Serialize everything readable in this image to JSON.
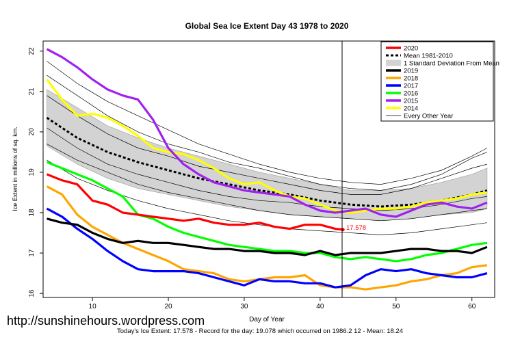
{
  "chart_data": {
    "type": "line",
    "title": "Global Sea Ice Extent Day 43 1978 to 2020",
    "xlabel": "Day of Year",
    "ylabel": "Ice Extent in millions of sq. km.",
    "xlim": [
      3.5,
      63
    ],
    "ylim": [
      15.9,
      22.25
    ],
    "x_ticks": [
      10,
      20,
      30,
      40,
      50,
      60
    ],
    "y_ticks": [
      16,
      17,
      18,
      19,
      20,
      21,
      22
    ],
    "current_day": 43,
    "current_value_label": "17.578",
    "colors": {
      "2020": "#ff0000",
      "mean": "#000000",
      "sd_band": "#d3d3d3",
      "2019": "#000000",
      "2018": "#ffa500",
      "2017": "#0000ff",
      "2016": "#00ff00",
      "2015": "#a020f0",
      "2014": "#ffff00",
      "other": "#000000"
    },
    "legend": [
      {
        "label": "2020",
        "color": "#ff0000",
        "style": "thick"
      },
      {
        "label": "Mean 1981-2010",
        "color": "#000000",
        "style": "dotted"
      },
      {
        "label": "1 Standard Deviation From Mean",
        "color": "#d3d3d3",
        "style": "band"
      },
      {
        "label": "2019",
        "color": "#000000",
        "style": "thick"
      },
      {
        "label": "2018",
        "color": "#ffa500",
        "style": "thick"
      },
      {
        "label": "2017",
        "color": "#0000ff",
        "style": "thick"
      },
      {
        "label": "2016",
        "color": "#00ff00",
        "style": "thick"
      },
      {
        "label": "2015",
        "color": "#a020f0",
        "style": "thick"
      },
      {
        "label": "2014",
        "color": "#ffff00",
        "style": "thick"
      },
      {
        "label": "Every Other Year",
        "color": "#000000",
        "style": "thin"
      }
    ],
    "legend_position": "top-right",
    "mean": {
      "x": [
        4,
        8,
        12,
        16,
        20,
        24,
        28,
        32,
        36,
        40,
        44,
        48,
        52,
        56,
        60,
        62
      ],
      "y": [
        20.35,
        19.85,
        19.5,
        19.25,
        19.05,
        18.85,
        18.7,
        18.55,
        18.45,
        18.3,
        18.2,
        18.15,
        18.2,
        18.3,
        18.45,
        18.55
      ]
    },
    "sd_band": {
      "x": [
        4,
        8,
        12,
        16,
        20,
        24,
        28,
        32,
        36,
        40,
        44,
        48,
        52,
        56,
        60,
        62
      ],
      "upper": [
        21.05,
        20.6,
        20.15,
        19.85,
        19.6,
        19.4,
        19.2,
        19.0,
        18.85,
        18.7,
        18.55,
        18.55,
        18.6,
        18.75,
        18.95,
        19.1
      ],
      "lower": [
        19.65,
        19.2,
        18.85,
        18.6,
        18.45,
        18.3,
        18.15,
        18.05,
        17.95,
        17.9,
        17.85,
        17.8,
        17.85,
        17.95,
        18.0,
        18.1
      ]
    },
    "series": [
      {
        "name": "2020",
        "x": [
          4,
          6,
          8,
          10,
          12,
          14,
          16,
          18,
          20,
          22,
          24,
          26,
          28,
          30,
          32,
          34,
          36,
          38,
          40,
          42,
          43
        ],
        "y": [
          18.95,
          18.8,
          18.7,
          18.3,
          18.2,
          18.0,
          17.95,
          17.9,
          17.85,
          17.8,
          17.85,
          17.75,
          17.7,
          17.7,
          17.75,
          17.65,
          17.6,
          17.7,
          17.7,
          17.6,
          17.578
        ]
      },
      {
        "name": "2019",
        "x": [
          4,
          6,
          8,
          10,
          12,
          14,
          16,
          18,
          20,
          22,
          24,
          26,
          28,
          30,
          32,
          34,
          36,
          38,
          40,
          42,
          44,
          46,
          48,
          50,
          52,
          54,
          56,
          58,
          60,
          62
        ],
        "y": [
          17.85,
          17.75,
          17.7,
          17.5,
          17.35,
          17.25,
          17.3,
          17.25,
          17.25,
          17.2,
          17.15,
          17.1,
          17.1,
          17.05,
          17.05,
          17.0,
          17.0,
          16.95,
          17.05,
          16.95,
          17.0,
          17.0,
          17.0,
          17.05,
          17.1,
          17.1,
          17.05,
          17.05,
          17.0,
          17.15
        ]
      },
      {
        "name": "2018",
        "x": [
          4,
          6,
          8,
          10,
          12,
          14,
          16,
          18,
          20,
          22,
          24,
          26,
          28,
          30,
          32,
          34,
          36,
          38,
          40,
          42,
          44,
          46,
          48,
          50,
          52,
          54,
          56,
          58,
          60,
          62
        ],
        "y": [
          18.65,
          18.45,
          17.95,
          17.65,
          17.45,
          17.25,
          17.1,
          16.95,
          16.8,
          16.6,
          16.55,
          16.5,
          16.35,
          16.3,
          16.35,
          16.4,
          16.4,
          16.45,
          16.2,
          16.15,
          16.15,
          16.1,
          16.15,
          16.2,
          16.3,
          16.35,
          16.45,
          16.5,
          16.65,
          16.7
        ]
      },
      {
        "name": "2017",
        "x": [
          4,
          6,
          8,
          10,
          12,
          14,
          16,
          18,
          20,
          22,
          24,
          26,
          28,
          30,
          32,
          34,
          36,
          38,
          40,
          42,
          44,
          46,
          48,
          50,
          52,
          54,
          56,
          58,
          60,
          62
        ],
        "y": [
          18.1,
          17.9,
          17.6,
          17.35,
          17.05,
          16.8,
          16.6,
          16.55,
          16.55,
          16.55,
          16.5,
          16.4,
          16.3,
          16.2,
          16.35,
          16.3,
          16.3,
          16.25,
          16.25,
          16.15,
          16.2,
          16.45,
          16.6,
          16.55,
          16.6,
          16.5,
          16.45,
          16.4,
          16.4,
          16.5
        ]
      },
      {
        "name": "2016",
        "x": [
          4,
          6,
          8,
          10,
          12,
          14,
          16,
          18,
          20,
          22,
          24,
          26,
          28,
          30,
          32,
          34,
          36,
          38,
          40,
          42,
          44,
          46,
          48,
          50,
          52,
          54,
          56,
          58,
          60,
          62
        ],
        "y": [
          19.25,
          19.1,
          18.95,
          18.8,
          18.6,
          18.4,
          17.95,
          17.85,
          17.65,
          17.5,
          17.4,
          17.3,
          17.2,
          17.15,
          17.1,
          17.05,
          17.05,
          17.0,
          17.0,
          16.9,
          16.85,
          16.9,
          16.85,
          16.8,
          16.85,
          16.95,
          17.0,
          17.1,
          17.2,
          17.25
        ]
      },
      {
        "name": "2015",
        "x": [
          4,
          6,
          8,
          10,
          12,
          14,
          16,
          18,
          20,
          22,
          24,
          26,
          28,
          30,
          32,
          34,
          36,
          38,
          40,
          42,
          44,
          46,
          48,
          50,
          52,
          54,
          56,
          58,
          60,
          62
        ],
        "y": [
          22.05,
          21.85,
          21.6,
          21.3,
          21.05,
          20.9,
          20.8,
          20.3,
          19.6,
          19.2,
          18.95,
          18.75,
          18.65,
          18.55,
          18.5,
          18.45,
          18.4,
          18.2,
          18.05,
          18.0,
          18.05,
          18.1,
          17.95,
          17.9,
          18.05,
          18.2,
          18.25,
          18.15,
          18.1,
          18.25
        ]
      },
      {
        "name": "2014",
        "x": [
          4,
          6,
          8,
          10,
          12,
          14,
          16,
          18,
          20,
          22,
          24,
          26,
          28,
          30,
          32,
          34,
          36,
          38,
          40,
          42,
          44,
          46,
          48,
          50,
          52,
          54,
          56,
          58,
          60,
          62
        ],
        "y": [
          21.3,
          20.8,
          20.4,
          20.45,
          20.35,
          20.15,
          19.9,
          19.6,
          19.5,
          19.45,
          19.3,
          19.1,
          18.85,
          18.7,
          18.75,
          18.55,
          18.4,
          18.35,
          18.2,
          18.05,
          18.0,
          18.05,
          18.1,
          18.1,
          18.15,
          18.25,
          18.3,
          18.35,
          18.45,
          18.5
        ]
      },
      {
        "name": "Every Other Year",
        "x": [
          4,
          8,
          12,
          16,
          20,
          24,
          28,
          32,
          36,
          40,
          44,
          48,
          52,
          56,
          60,
          62
        ],
        "y": [
          21.4,
          20.9,
          20.4,
          20.0,
          19.7,
          19.5,
          19.25,
          19.1,
          18.9,
          18.7,
          18.6,
          18.55,
          18.7,
          18.95,
          19.35,
          19.5
        ]
      },
      {
        "name": "Every Other Year",
        "x": [
          4,
          8,
          12,
          16,
          20,
          24,
          28,
          32,
          36,
          40,
          44,
          48,
          52,
          56,
          60,
          62
        ],
        "y": [
          20.9,
          20.4,
          19.95,
          19.6,
          19.4,
          19.15,
          19.0,
          18.85,
          18.7,
          18.55,
          18.45,
          18.45,
          18.6,
          18.85,
          19.1,
          19.2
        ]
      },
      {
        "name": "Every Other Year",
        "x": [
          4,
          8,
          12,
          16,
          20,
          24,
          28,
          32,
          36,
          40,
          44,
          48,
          52,
          56,
          60,
          62
        ],
        "y": [
          20.1,
          19.6,
          19.2,
          18.95,
          18.75,
          18.55,
          18.4,
          18.3,
          18.25,
          18.15,
          18.1,
          18.05,
          18.1,
          18.2,
          18.35,
          18.4
        ]
      },
      {
        "name": "Every Other Year",
        "x": [
          4,
          8,
          12,
          16,
          20,
          24,
          28,
          32,
          36,
          40,
          44,
          48,
          52,
          56,
          60,
          62
        ],
        "y": [
          19.7,
          19.3,
          19.0,
          18.7,
          18.5,
          18.35,
          18.2,
          18.05,
          17.95,
          17.9,
          17.85,
          17.8,
          17.85,
          17.95,
          18.05,
          18.1
        ]
      },
      {
        "name": "Every Other Year",
        "x": [
          4,
          8,
          12,
          16,
          20,
          24,
          28,
          32,
          36,
          40,
          44,
          48,
          52,
          56,
          60,
          62
        ],
        "y": [
          19.3,
          18.85,
          18.55,
          18.3,
          18.1,
          17.95,
          17.8,
          17.7,
          17.6,
          17.55,
          17.5,
          17.45,
          17.5,
          17.6,
          17.7,
          17.75
        ]
      },
      {
        "name": "Every Other Year",
        "x": [
          4,
          8,
          12,
          16,
          20,
          24,
          28,
          32,
          36,
          40,
          44,
          48,
          52,
          56,
          60,
          62
        ],
        "y": [
          21.75,
          21.2,
          20.75,
          20.4,
          20.05,
          19.7,
          19.45,
          19.2,
          19.0,
          18.85,
          18.75,
          18.7,
          18.85,
          19.05,
          19.4,
          19.6
        ]
      }
    ]
  },
  "footer": {
    "watermark": "http://sunshinehours.wordpress.com",
    "summary": "Today's Ice Extent: 17.578  - Record for the day: 19.078 which occurred on 1986.2 12  - Mean: 18.24"
  }
}
